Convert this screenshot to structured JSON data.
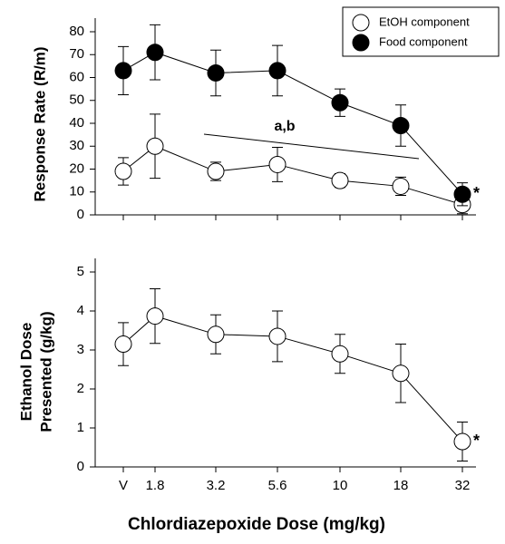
{
  "chart_data": [
    {
      "type": "line",
      "y_label": "Response Rate (R/m)",
      "ylim": [
        0,
        80
      ],
      "yticks": [
        0,
        10,
        20,
        30,
        40,
        50,
        60,
        70,
        80
      ],
      "legend": "top-right",
      "series": [
        {
          "name": "EtOH component",
          "color": "#ffffff",
          "values": [
            19,
            30,
            19,
            22,
            15,
            12.5,
            4.5
          ],
          "errors": [
            6,
            14,
            4,
            7.5,
            3,
            4,
            4
          ]
        },
        {
          "name": "Food component",
          "color": "#000000",
          "values": [
            63,
            71,
            62,
            63,
            49,
            39,
            9
          ],
          "errors": [
            10.5,
            12,
            10,
            11,
            6,
            9,
            5
          ]
        }
      ],
      "annotations": [
        "a,b",
        "*"
      ]
    },
    {
      "type": "line",
      "y_label": [
        "Ethanol Dose",
        "Presented (g/kg)"
      ],
      "x_label": "Chlordiazepoxide Dose (mg/kg)",
      "categories": [
        "V",
        "1.8",
        "3.2",
        "5.6",
        "10",
        "18",
        "32"
      ],
      "ylim": [
        0,
        5
      ],
      "yticks": [
        0,
        1,
        2,
        3,
        4,
        5
      ],
      "color": "#ffffff",
      "values": [
        3.15,
        3.87,
        3.4,
        3.35,
        2.9,
        2.4,
        0.65
      ],
      "errors": [
        0.55,
        0.7,
        0.5,
        0.65,
        0.5,
        0.75,
        0.5
      ],
      "annotations": [
        "*"
      ]
    }
  ]
}
